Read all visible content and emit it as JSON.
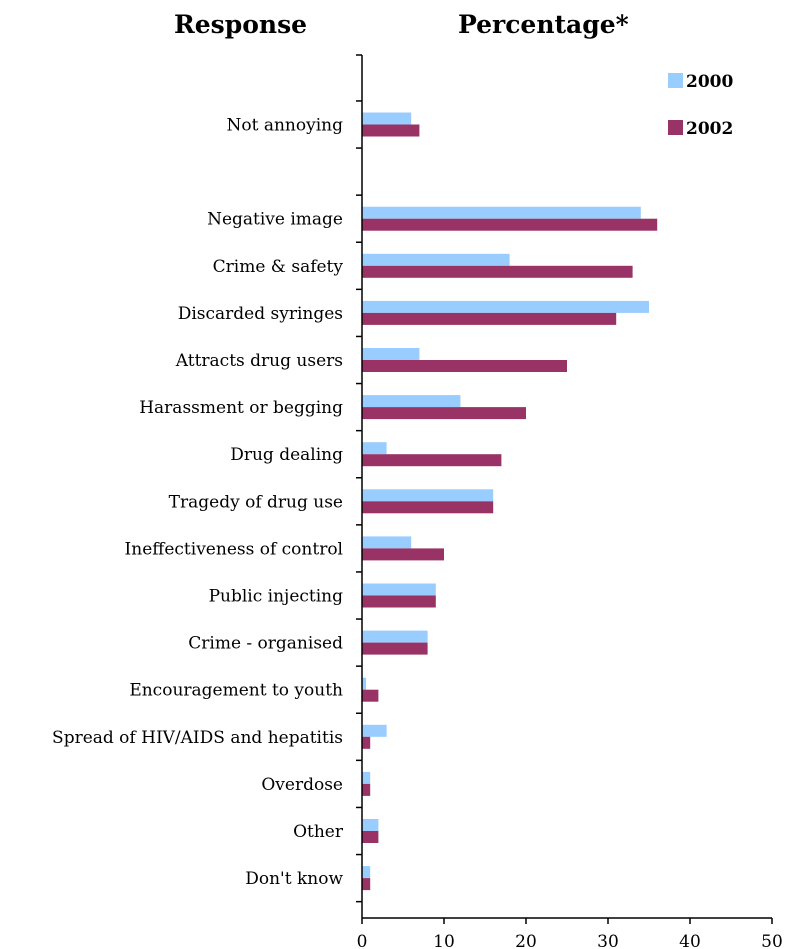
{
  "header": {
    "left": "Response",
    "right": "Percentage*"
  },
  "chart_data": {
    "type": "bar",
    "orientation": "horizontal",
    "categories": [
      "Not annoying",
      "",
      "Negative image",
      "Crime & safety",
      "Discarded syringes",
      "Attracts drug users",
      "Harassment or begging",
      "Drug dealing",
      "Tragedy of drug use",
      "Ineffectiveness of control",
      "Public injecting",
      "Crime - organised",
      "Encouragement to youth",
      "Spread of HIV/AIDS and hepatitis",
      "Overdose",
      "Other",
      "Don't know"
    ],
    "series": [
      {
        "name": "2000",
        "color": "#99ccff",
        "values": [
          6,
          null,
          34,
          18,
          35,
          7,
          12,
          3,
          16,
          6,
          9,
          8,
          0.5,
          3,
          1,
          2,
          1
        ]
      },
      {
        "name": "2002",
        "color": "#993366",
        "values": [
          7,
          null,
          36,
          33,
          31,
          25,
          20,
          17,
          16,
          10,
          9,
          8,
          2,
          1,
          1,
          2,
          1
        ]
      }
    ],
    "xlim": [
      0,
      50
    ],
    "xticks": [
      "0",
      "10",
      "20",
      "30",
      "40",
      "50"
    ],
    "legend_position": "top-right",
    "grid": false
  }
}
